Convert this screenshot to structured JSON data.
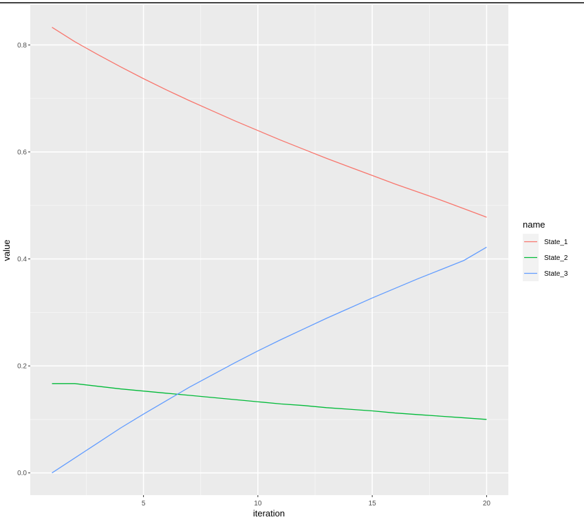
{
  "chart_data": {
    "type": "line",
    "title": "",
    "xlabel": "iteration",
    "ylabel": "value",
    "xlim": [
      0.05,
      20.95
    ],
    "ylim": [
      -0.0415,
      0.875
    ],
    "x_ticks": [
      5,
      10,
      15,
      20
    ],
    "x_tick_labels": [
      "5",
      "10",
      "15",
      "20"
    ],
    "y_ticks": [
      0.0,
      0.2,
      0.4,
      0.6,
      0.8
    ],
    "y_tick_labels": [
      "0.0",
      "0.2",
      "0.4",
      "0.6",
      "0.8"
    ],
    "grid": true,
    "legend": {
      "title": "name",
      "placement": "right"
    },
    "x": [
      1,
      2,
      3,
      4,
      5,
      6,
      7,
      8,
      9,
      10,
      11,
      12,
      13,
      14,
      15,
      16,
      17,
      18,
      19,
      20
    ],
    "series": [
      {
        "name": "State_1",
        "color": "#F8766D",
        "values": [
          0.833,
          0.806,
          0.782,
          0.759,
          0.737,
          0.716,
          0.696,
          0.677,
          0.658,
          0.64,
          0.622,
          0.605,
          0.588,
          0.572,
          0.556,
          0.54,
          0.525,
          0.51,
          0.494,
          0.478
        ]
      },
      {
        "name": "State_2",
        "color": "#00BA38",
        "values": [
          0.167,
          0.167,
          0.162,
          0.157,
          0.153,
          0.149,
          0.145,
          0.141,
          0.137,
          0.133,
          0.129,
          0.126,
          0.122,
          0.119,
          0.116,
          0.112,
          0.109,
          0.106,
          0.103,
          0.1
        ]
      },
      {
        "name": "State_3",
        "color": "#619CFF",
        "values": [
          0.0,
          0.028,
          0.056,
          0.084,
          0.11,
          0.135,
          0.16,
          0.183,
          0.206,
          0.228,
          0.249,
          0.269,
          0.289,
          0.308,
          0.327,
          0.345,
          0.363,
          0.38,
          0.397,
          0.422
        ]
      }
    ]
  }
}
